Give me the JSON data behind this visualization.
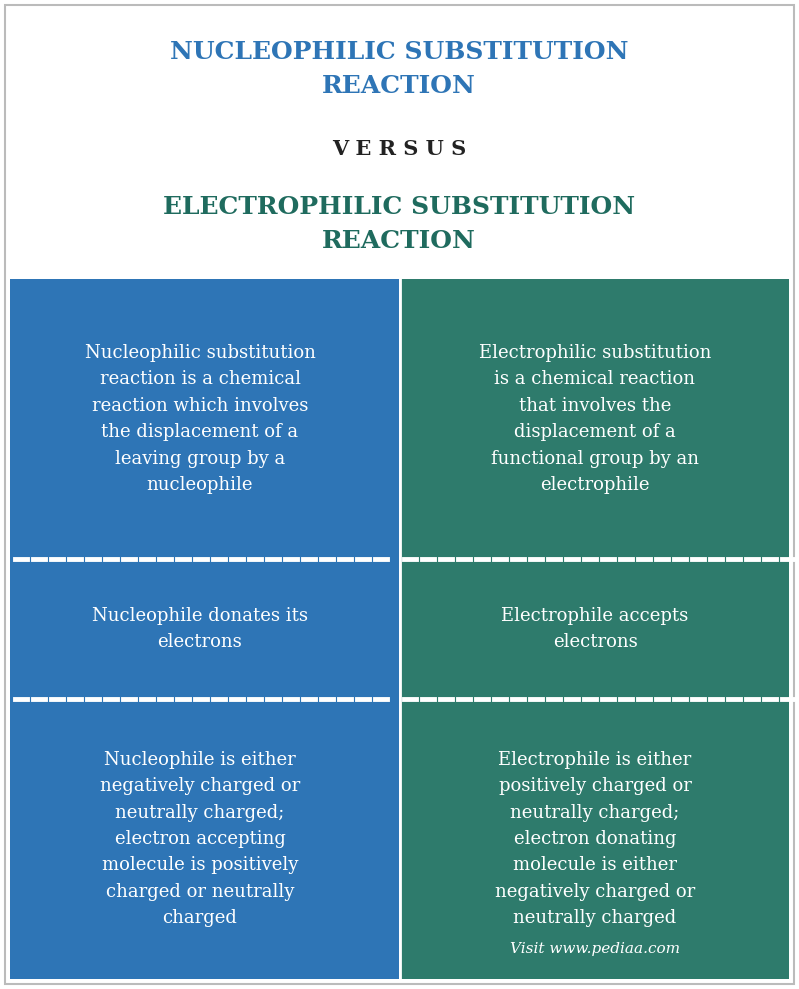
{
  "title1": "NUCLEOPHILIC SUBSTITUTION\nREACTION",
  "versus": "V E R S U S",
  "title2": "ELECTROPHILIC SUBSTITUTION\nREACTION",
  "title1_color": "#2E75B6",
  "title2_color": "#1F6B5E",
  "versus_color": "#222222",
  "left_bg": "#2E75B6",
  "right_bg": "#2E7B6C",
  "text_color": "#FFFFFF",
  "bg_color": "#FFFFFF",
  "left_col": [
    "Nucleophilic substitution\nreaction is a chemical\nreaction which involves\nthe displacement of a\nleaving group by a\nnucleophile",
    "Nucleophile donates its\nelectrons",
    "Nucleophile is either\nnegatively charged or\nneutrally charged;\nelectron accepting\nmolecule is positively\ncharged or neutrally\ncharged"
  ],
  "right_col": [
    "Electrophilic substitution\nis a chemical reaction\nthat involves the\ndisplacement of a\nfunctional group by an\nelectrophile",
    "Electrophile accepts\nelectrons",
    "Electrophile is either\npositively charged or\nneutrally charged;\nelectron donating\nmolecule is either\nnegatively charged or\nneutrally charged"
  ],
  "watermark": "Visit www.pediaa.com",
  "content_fontsize": 13,
  "title_fontsize": 18,
  "versus_fontsize": 15
}
